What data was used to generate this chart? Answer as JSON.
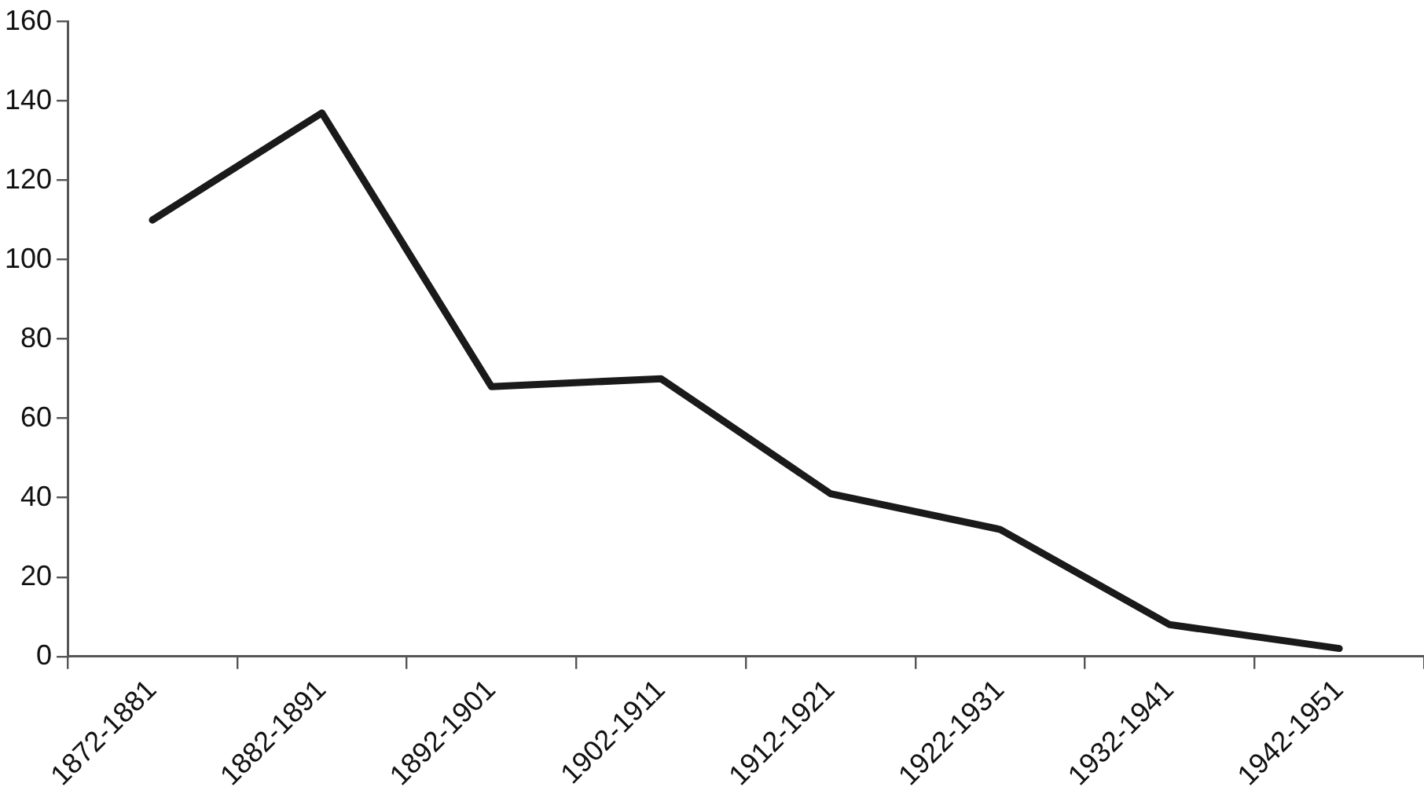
{
  "chart_data": {
    "type": "line",
    "categories": [
      "1872-1881",
      "1882-1891",
      "1892-1901",
      "1902-1911",
      "1912-1921",
      "1922-1931",
      "1932-1941",
      "1942-1951"
    ],
    "series": [
      {
        "color": "#1a1a1a",
        "values": [
          110,
          137,
          68,
          70,
          41,
          32,
          8,
          2
        ]
      }
    ],
    "ylim": [
      0,
      160
    ],
    "yticks": [
      0,
      20,
      40,
      60,
      80,
      100,
      120,
      140,
      160
    ],
    "grid": false,
    "legend": false,
    "marker": "none",
    "line_style": "solid"
  }
}
